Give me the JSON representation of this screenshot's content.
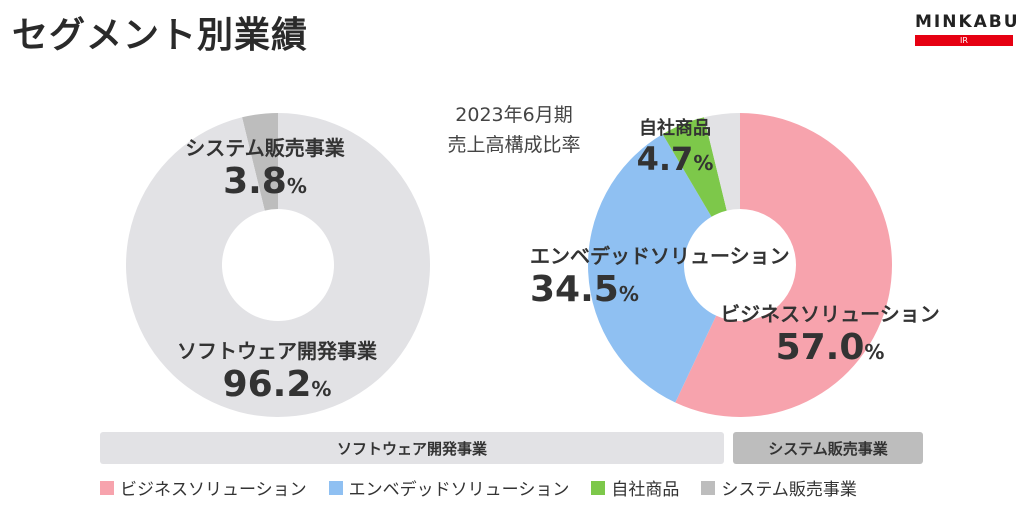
{
  "page": {
    "title": "セグメント別業績",
    "brand": {
      "wordmark": "MINKABU",
      "sub": "IR"
    },
    "caption_line1": "2023年6月期",
    "caption_line2": "売上高構成比率"
  },
  "colors": {
    "software": "#e2e2e5",
    "system_sales": "#bdbdbd",
    "business": "#f7a3ad",
    "embedded": "#8fc0f2",
    "own": "#7dc84a",
    "system_sales_right": "#e2e2e5"
  },
  "chart_data": [
    {
      "type": "pie",
      "donut": true,
      "slices": [
        {
          "name": "システム販売事業",
          "value": 3.8,
          "label": "3.8"
        },
        {
          "name": "ソフトウェア開発事業",
          "value": 96.2,
          "label": "96.2"
        }
      ],
      "unit": "%"
    },
    {
      "type": "pie",
      "donut": true,
      "slices": [
        {
          "name": "ビジネスソリューション",
          "value": 57.0,
          "label": "57.0"
        },
        {
          "name": "エンベデッドソリューション",
          "value": 34.5,
          "label": "34.5"
        },
        {
          "name": "自社商品",
          "value": 4.7,
          "label": "4.7"
        },
        {
          "name": "システム販売事業",
          "value": 3.8
        }
      ],
      "unit": "%"
    }
  ],
  "groups": {
    "software_label": "ソフトウェア開発事業",
    "system_label": "システム販売事業"
  },
  "legend": [
    {
      "label": "ビジネスソリューション",
      "color": "#f7a3ad"
    },
    {
      "label": "エンベデッドソリューション",
      "color": "#8fc0f2"
    },
    {
      "label": "自社商品",
      "color": "#7dc84a"
    },
    {
      "label": "システム販売事業",
      "color": "#bdbdbd"
    }
  ]
}
